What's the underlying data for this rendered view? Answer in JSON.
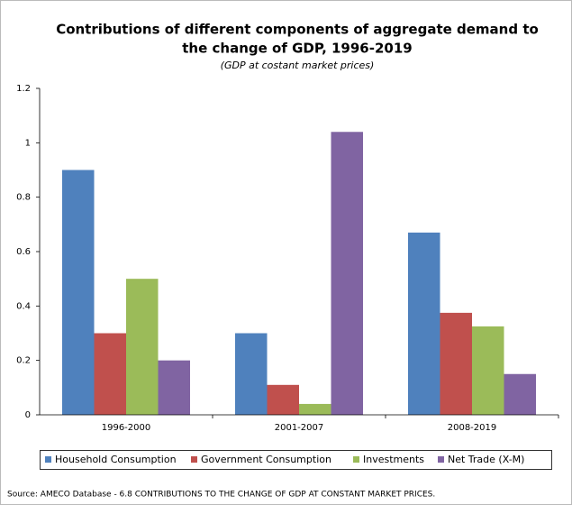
{
  "chart_data": {
    "type": "bar",
    "title": [
      "Contributions of different components of aggregate demand to",
      "the change of GDP, 1996-2019"
    ],
    "subtitle": "(GDP at costant market prices)",
    "categories": [
      "1996-2000",
      "2001-2007",
      "2008-2019"
    ],
    "series": [
      {
        "name": "Household Consumption",
        "color": "#4f81bd",
        "values": [
          0.9,
          0.3,
          0.67
        ]
      },
      {
        "name": "Government Consumption",
        "color": "#c0504d",
        "values": [
          0.3,
          0.11,
          0.375
        ]
      },
      {
        "name": "Investments",
        "color": "#9bbb59",
        "values": [
          0.5,
          0.04,
          0.325
        ]
      },
      {
        "name": "Net Trade (X-M)",
        "color": "#8064a2",
        "values": [
          0.2,
          1.04,
          0.15
        ]
      }
    ],
    "ylim": [
      0,
      1.2
    ],
    "yticks": [
      0,
      0.2,
      0.4,
      0.6,
      0.8,
      1,
      1.2
    ],
    "legend": "bottom",
    "source": "Source: AMECO Database - 6.8 CONTRIBUTIONS TO THE CHANGE OF GDP AT CONSTANT MARKET PRICES."
  }
}
